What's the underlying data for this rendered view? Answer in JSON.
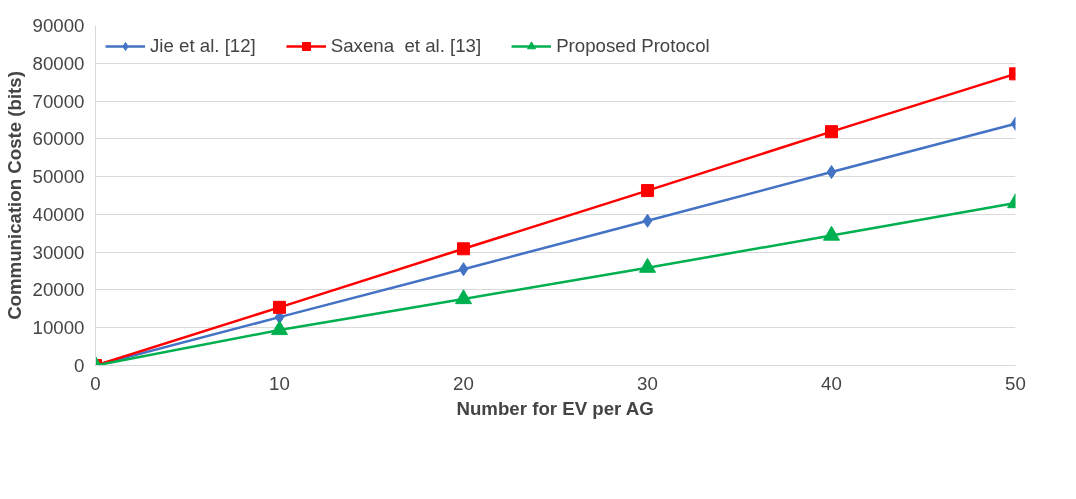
{
  "chart_data": {
    "type": "line",
    "xlabel": "Number for EV per AG",
    "ylabel": "Communication Coste (bits)",
    "x": [
      0,
      10,
      20,
      30,
      40,
      50
    ],
    "xlim": [
      0,
      50
    ],
    "xticks": [
      0,
      10,
      20,
      30,
      40,
      50
    ],
    "ylim": [
      0,
      90000
    ],
    "yticks": [
      0,
      10000,
      20000,
      30000,
      40000,
      50000,
      60000,
      70000,
      80000,
      90000
    ],
    "grid": "y",
    "legend": "top",
    "series": [
      {
        "name": "Jie et al. [12]",
        "color": "#4472c4",
        "marker": "diamond",
        "values": [
          0,
          12800,
          25500,
          38300,
          51200,
          64000
        ]
      },
      {
        "name": "Saxena  et al. [13]",
        "color": "#ff0000",
        "marker": "square",
        "values": [
          0,
          15400,
          30900,
          46300,
          61900,
          77200
        ]
      },
      {
        "name": "Proposed Protocol",
        "color": "#00b050",
        "marker": "triangle",
        "values": [
          0,
          9400,
          17600,
          25900,
          34400,
          43000
        ]
      }
    ]
  }
}
